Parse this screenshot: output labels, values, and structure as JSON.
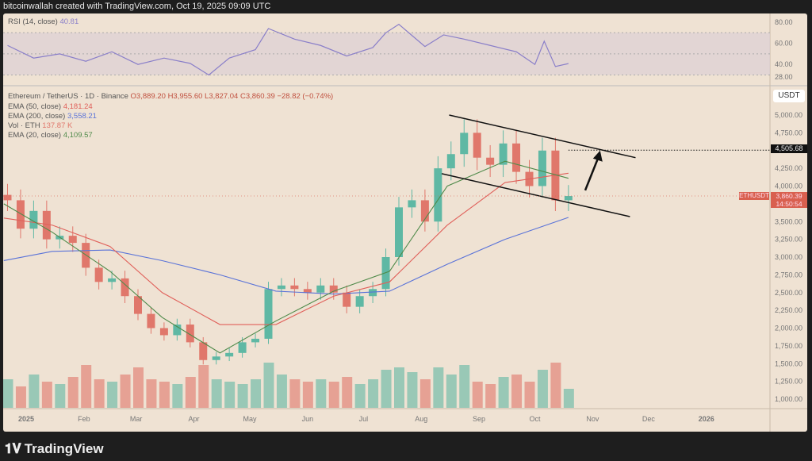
{
  "header": {
    "attribution": "bitcoinwallah created with TradingView.com, Oct 19, 2025 09:09 UTC"
  },
  "rsi_legend": {
    "label": "RSI (14, close)",
    "value": "40.81"
  },
  "main_legend": {
    "symbol": "Ethereum / TetherUS · 1D · Binance",
    "open": "O3,889.20",
    "high": "H3,955.60",
    "low": "L3,827.04",
    "close": "C3,860.39",
    "change": "−28.82 (−0.74%)",
    "ema50_label": "EMA (50, close)",
    "ema50_value": "4,181.24",
    "ema200_label": "EMA (200, close)",
    "ema200_value": "3,558.21",
    "vol_label": "Vol · ETH",
    "vol_value": "137.87 K",
    "ema20_label": "EMA (20, close)",
    "ema20_value": "4,109.57"
  },
  "price_axis": {
    "currency": "USDT",
    "target_label": "4,505.68",
    "symbol_tag": "ETHUSDT",
    "last_price": "3,860.39",
    "countdown": "14:50:54"
  },
  "footer": {
    "brand": "TradingView"
  },
  "colors": {
    "up": "#5fb8a4",
    "down": "#e0776b",
    "ema50": "#e0605a",
    "ema200": "#5a73d8",
    "ema20": "#4f8a4a",
    "rsi": "#8a7fc9",
    "bg": "#efe2d3"
  },
  "chart_data": [
    {
      "type": "line",
      "name": "RSI (14, close)",
      "ylim": [
        28,
        80
      ],
      "y_ticks": [
        80,
        60,
        40,
        28
      ],
      "bands": [
        30,
        50,
        70
      ],
      "x": [
        "2024-12-22",
        "2025-01-05",
        "2025-01-19",
        "2025-02-02",
        "2025-02-16",
        "2025-03-02",
        "2025-03-16",
        "2025-03-30",
        "2025-04-09",
        "2025-04-20",
        "2025-05-04",
        "2025-05-11",
        "2025-05-25",
        "2025-06-08",
        "2025-06-22",
        "2025-07-06",
        "2025-07-13",
        "2025-07-20",
        "2025-08-03",
        "2025-08-13",
        "2025-08-24",
        "2025-09-07",
        "2025-09-21",
        "2025-10-01",
        "2025-10-06",
        "2025-10-12",
        "2025-10-19"
      ],
      "values": [
        58,
        46,
        50,
        43,
        52,
        40,
        46,
        41,
        30,
        46,
        54,
        74,
        64,
        58,
        48,
        56,
        70,
        78,
        57,
        68,
        64,
        58,
        52,
        40,
        62,
        38,
        40.81
      ]
    },
    {
      "type": "candlestick",
      "title": "Ethereum / TetherUS · 1D · Binance",
      "ylabel": "USDT",
      "ylim": [
        900,
        5200
      ],
      "y_ticks": [
        5000,
        4750,
        4250,
        4000,
        3500,
        3250,
        3000,
        2750,
        2500,
        2250,
        2000,
        1750,
        1500,
        1250,
        1000
      ],
      "x_ticks": [
        "2025",
        "Feb",
        "Mar",
        "Apr",
        "May",
        "Jun",
        "Jul",
        "Aug",
        "Sep",
        "Oct",
        "Nov",
        "Dec",
        "2026"
      ],
      "x": [
        "2024-12-22",
        "2024-12-29",
        "2025-01-05",
        "2025-01-12",
        "2025-01-19",
        "2025-01-26",
        "2025-02-02",
        "2025-02-09",
        "2025-02-16",
        "2025-02-23",
        "2025-03-02",
        "2025-03-09",
        "2025-03-16",
        "2025-03-23",
        "2025-03-30",
        "2025-04-06",
        "2025-04-13",
        "2025-04-20",
        "2025-04-27",
        "2025-05-04",
        "2025-05-11",
        "2025-05-18",
        "2025-05-25",
        "2025-06-01",
        "2025-06-08",
        "2025-06-15",
        "2025-06-22",
        "2025-06-29",
        "2025-07-06",
        "2025-07-13",
        "2025-07-20",
        "2025-07-27",
        "2025-08-03",
        "2025-08-10",
        "2025-08-17",
        "2025-08-24",
        "2025-08-31",
        "2025-09-07",
        "2025-09-14",
        "2025-09-21",
        "2025-09-28",
        "2025-10-05",
        "2025-10-12",
        "2025-10-19"
      ],
      "close": [
        3800,
        3400,
        3650,
        3250,
        3300,
        3200,
        2850,
        2650,
        2700,
        2450,
        2200,
        2000,
        1900,
        2050,
        1800,
        1550,
        1600,
        1650,
        1800,
        1850,
        2550,
        2600,
        2550,
        2500,
        2600,
        2500,
        2300,
        2450,
        2550,
        3000,
        3700,
        3800,
        3500,
        4250,
        4450,
        4750,
        4400,
        4300,
        4600,
        4200,
        4000,
        4500,
        3800,
        3860
      ],
      "volume": [
        60,
        45,
        70,
        55,
        50,
        65,
        90,
        60,
        55,
        70,
        85,
        60,
        55,
        50,
        65,
        90,
        60,
        55,
        50,
        60,
        95,
        70,
        60,
        55,
        60,
        55,
        65,
        50,
        60,
        80,
        85,
        75,
        60,
        85,
        70,
        90,
        55,
        50,
        65,
        70,
        55,
        80,
        95,
        40
      ],
      "overlays": [
        {
          "name": "EMA (200, close)",
          "x": [
            "2024-12-20",
            "2025-01-15",
            "2025-02-15",
            "2025-03-15",
            "2025-04-15",
            "2025-05-15",
            "2025-06-15",
            "2025-07-15",
            "2025-08-15",
            "2025-09-15",
            "2025-10-19"
          ],
          "values": [
            2950,
            3080,
            3100,
            2950,
            2750,
            2520,
            2480,
            2520,
            2900,
            3250,
            3558.21
          ]
        },
        {
          "name": "EMA (50, close)",
          "x": [
            "2024-12-20",
            "2025-01-15",
            "2025-02-15",
            "2025-03-15",
            "2025-04-15",
            "2025-05-15",
            "2025-06-15",
            "2025-07-15",
            "2025-08-15",
            "2025-09-15",
            "2025-10-19"
          ],
          "values": [
            3550,
            3450,
            3150,
            2500,
            2050,
            2050,
            2450,
            2650,
            3450,
            4050,
            4181.24
          ]
        },
        {
          "name": "EMA (20, close)",
          "x": [
            "2024-12-20",
            "2025-01-15",
            "2025-02-15",
            "2025-03-15",
            "2025-04-15",
            "2025-05-15",
            "2025-06-15",
            "2025-07-15",
            "2025-08-15",
            "2025-09-15",
            "2025-10-19"
          ],
          "values": [
            3750,
            3350,
            2800,
            2150,
            1650,
            2100,
            2520,
            2800,
            4000,
            4350,
            4109.57
          ]
        }
      ],
      "annotations": {
        "channel_upper": [
          [
            "2025-08-16",
            5000
          ],
          [
            "2025-11-24",
            4400
          ]
        ],
        "channel_lower": [
          [
            "2025-08-12",
            4175
          ],
          [
            "2025-11-21",
            3570
          ]
        ],
        "arrow": [
          [
            "2025-10-28",
            3940
          ],
          [
            "2025-11-05",
            4500
          ]
        ],
        "target_level": 4505.68,
        "last_price": 3860.39
      }
    }
  ]
}
